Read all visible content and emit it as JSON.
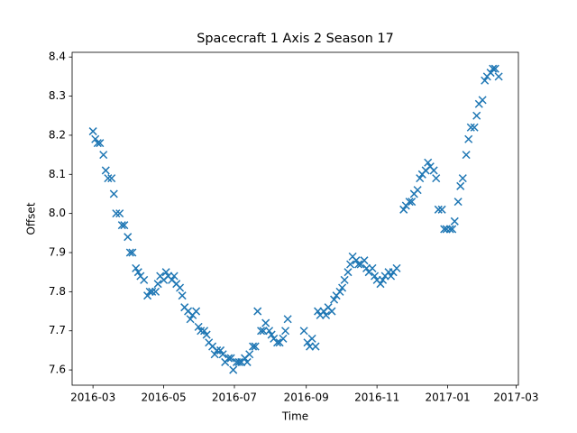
{
  "chart_data": {
    "type": "scatter",
    "title": "Spacecraft 1 Axis 2 Season 17",
    "x_label": "Time",
    "y_label": "Offset",
    "marker": "x",
    "color": "#1f77b4",
    "xlim": [
      "2016-02-12",
      "2017-03-03"
    ],
    "xticks": [
      {
        "value": "2016-03-01",
        "label": "2016-03"
      },
      {
        "value": "2016-05-01",
        "label": "2016-05"
      },
      {
        "value": "2016-07-01",
        "label": "2016-07"
      },
      {
        "value": "2016-09-01",
        "label": "2016-09"
      },
      {
        "value": "2016-11-01",
        "label": "2016-11"
      },
      {
        "value": "2017-01-01",
        "label": "2017-01"
      },
      {
        "value": "2017-03-01",
        "label": "2017-03"
      }
    ],
    "ylim": [
      7.561,
      8.412
    ],
    "yticks": [
      7.6,
      7.7,
      7.8,
      7.9,
      {
        "value": 8,
        "label": "8.0"
      },
      8.1,
      8.2,
      8.3,
      8.4
    ],
    "x": [
      "2016-03-01",
      "2016-03-03",
      "2016-03-05",
      "2016-03-07",
      "2016-03-10",
      "2016-03-12",
      "2016-03-14",
      "2016-03-17",
      "2016-03-19",
      "2016-03-21",
      "2016-03-24",
      "2016-03-26",
      "2016-03-28",
      "2016-03-31",
      "2016-04-02",
      "2016-04-04",
      "2016-04-07",
      "2016-04-09",
      "2016-04-11",
      "2016-04-14",
      "2016-04-17",
      "2016-04-19",
      "2016-04-21",
      "2016-04-24",
      "2016-04-26",
      "2016-04-28",
      "2016-05-01",
      "2016-05-03",
      "2016-05-05",
      "2016-05-08",
      "2016-05-10",
      "2016-05-12",
      "2016-05-15",
      "2016-05-17",
      "2016-05-19",
      "2016-05-22",
      "2016-05-24",
      "2016-05-26",
      "2016-05-29",
      "2016-05-31",
      "2016-06-02",
      "2016-06-05",
      "2016-06-07",
      "2016-06-09",
      "2016-06-12",
      "2016-06-14",
      "2016-06-16",
      "2016-06-19",
      "2016-06-21",
      "2016-06-23",
      "2016-06-26",
      "2016-06-28",
      "2016-06-30",
      "2016-07-03",
      "2016-07-05",
      "2016-07-07",
      "2016-07-10",
      "2016-07-12",
      "2016-07-14",
      "2016-07-17",
      "2016-07-19",
      "2016-07-21",
      "2016-07-24",
      "2016-07-26",
      "2016-07-28",
      "2016-07-31",
      "2016-08-02",
      "2016-08-04",
      "2016-08-07",
      "2016-08-09",
      "2016-08-12",
      "2016-08-14",
      "2016-08-16",
      "2016-08-30",
      "2016-09-02",
      "2016-09-04",
      "2016-09-06",
      "2016-09-09",
      "2016-09-11",
      "2016-09-13",
      "2016-09-16",
      "2016-09-18",
      "2016-09-20",
      "2016-09-23",
      "2016-09-25",
      "2016-09-27",
      "2016-09-30",
      "2016-10-02",
      "2016-10-04",
      "2016-10-07",
      "2016-10-09",
      "2016-10-11",
      "2016-10-14",
      "2016-10-16",
      "2016-10-18",
      "2016-10-21",
      "2016-10-23",
      "2016-10-25",
      "2016-10-28",
      "2016-10-30",
      "2016-11-01",
      "2016-11-04",
      "2016-11-06",
      "2016-11-08",
      "2016-11-11",
      "2016-11-13",
      "2016-11-15",
      "2016-11-18",
      "2016-11-24",
      "2016-11-26",
      "2016-11-29",
      "2016-12-01",
      "2016-12-03",
      "2016-12-06",
      "2016-12-08",
      "2016-12-10",
      "2016-12-13",
      "2016-12-15",
      "2016-12-17",
      "2016-12-20",
      "2016-12-22",
      "2016-12-24",
      "2016-12-27",
      "2016-12-29",
      "2016-12-31",
      "2017-01-03",
      "2017-01-05",
      "2017-01-07",
      "2017-01-10",
      "2017-01-12",
      "2017-01-14",
      "2017-01-17",
      "2017-01-19",
      "2017-01-21",
      "2017-01-24",
      "2017-01-26",
      "2017-01-28",
      "2017-01-31",
      "2017-02-02",
      "2017-02-04",
      "2017-02-07",
      "2017-02-09",
      "2017-02-11",
      "2017-02-14"
    ],
    "values": [
      8.21,
      8.19,
      8.18,
      8.18,
      8.15,
      8.11,
      8.09,
      8.09,
      8.05,
      8.0,
      8.0,
      7.97,
      7.97,
      7.94,
      7.9,
      7.9,
      7.86,
      7.85,
      7.84,
      7.83,
      7.79,
      7.8,
      7.8,
      7.8,
      7.82,
      7.84,
      7.83,
      7.85,
      7.84,
      7.83,
      7.84,
      7.82,
      7.81,
      7.79,
      7.76,
      7.75,
      7.73,
      7.74,
      7.75,
      7.71,
      7.7,
      7.7,
      7.69,
      7.67,
      7.66,
      7.64,
      7.65,
      7.65,
      7.64,
      7.62,
      7.63,
      7.63,
      7.6,
      7.62,
      7.62,
      7.62,
      7.63,
      7.62,
      7.64,
      7.66,
      7.66,
      7.75,
      7.7,
      7.7,
      7.72,
      7.7,
      7.69,
      7.68,
      7.67,
      7.67,
      7.68,
      7.7,
      7.73,
      7.7,
      7.67,
      7.66,
      7.68,
      7.66,
      7.75,
      7.74,
      7.75,
      7.74,
      7.76,
      7.75,
      7.78,
      7.79,
      7.8,
      7.81,
      7.83,
      7.85,
      7.87,
      7.89,
      7.88,
      7.87,
      7.87,
      7.88,
      7.86,
      7.85,
      7.86,
      7.84,
      7.83,
      7.82,
      7.83,
      7.84,
      7.85,
      7.84,
      7.85,
      7.86,
      8.01,
      8.02,
      8.03,
      8.03,
      8.05,
      8.06,
      8.09,
      8.1,
      8.11,
      8.13,
      8.12,
      8.11,
      8.09,
      8.01,
      8.01,
      7.96,
      7.96,
      7.96,
      7.96,
      7.98,
      8.03,
      8.07,
      8.09,
      8.15,
      8.19,
      8.22,
      8.22,
      8.25,
      8.28,
      8.29,
      8.34,
      8.35,
      8.36,
      8.37,
      8.37,
      8.35
    ]
  }
}
